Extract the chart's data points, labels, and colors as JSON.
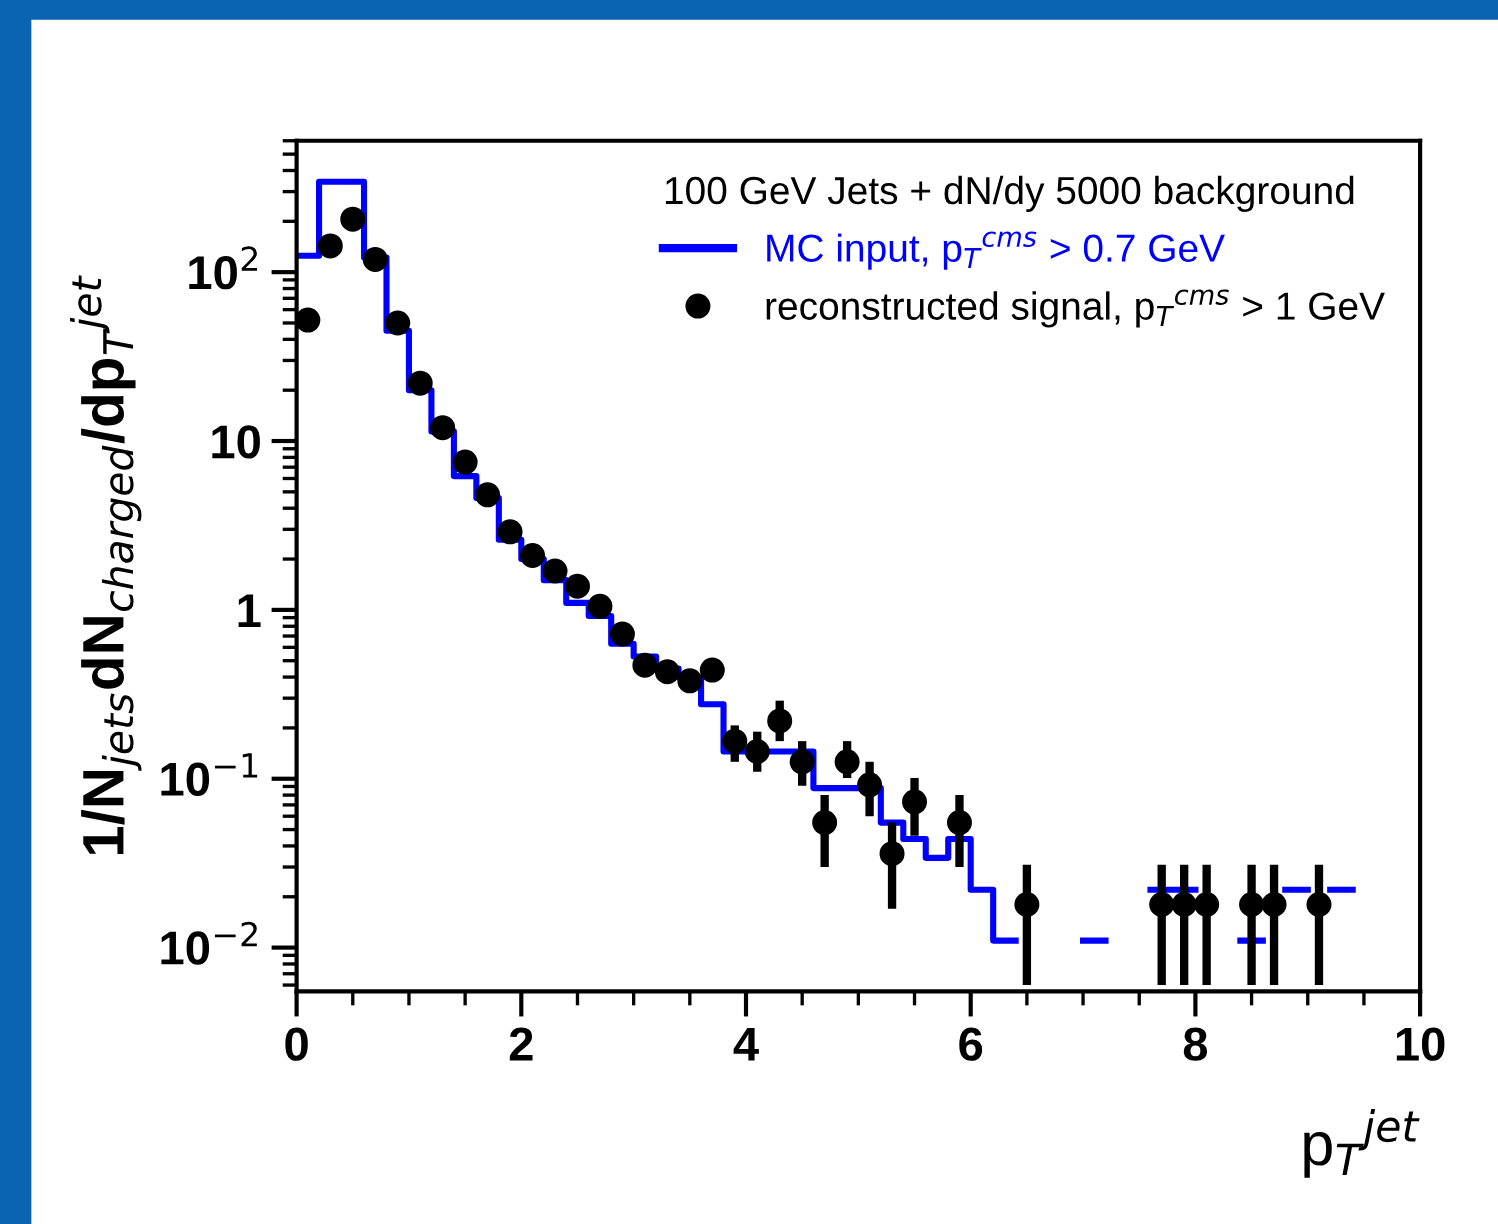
{
  "chart_data": {
    "type": "step",
    "legend_title": "100 GeV Jets + dN/dy 5000 background",
    "xlabel": "p$_{T}$$^{jet}$",
    "ylabel": "1/N$_{jets}$dN$_{charged}$/dp$_{T}$$^{jet}$",
    "series": [
      {
        "name": "MC input, p$_{T}$$^{cms}$ > 0.7 GeV",
        "color": "#0000ff",
        "x": [
          0,
          0.2,
          0.4,
          0.6,
          0.8,
          1.0,
          1.2,
          1.4,
          1.6,
          1.8,
          2.0,
          2.2,
          2.4,
          2.6,
          2.8,
          3.0,
          3.2,
          3.4,
          3.6,
          3.8,
          4.0,
          4.2,
          4.4,
          4.6,
          4.8,
          5.0,
          5.2,
          5.4,
          5.6,
          5.8,
          6.0,
          6.2,
          6.4,
          6.6,
          6.8,
          7.0,
          7.2,
          7.4,
          7.6,
          7.8,
          8.0,
          8.2,
          8.4,
          8.6,
          8.8,
          9.0,
          9.2,
          9.4
        ],
        "values": [
          125,
          343,
          343,
          122,
          45,
          20,
          11.4,
          6.2,
          4.6,
          2.6,
          2.0,
          1.5,
          1.1,
          0.92,
          0.63,
          0.53,
          0.45,
          0.4,
          0.276,
          0.145,
          0.145,
          0.145,
          0.145,
          0.088,
          0.088,
          0.088,
          0.055,
          0.044,
          0.034,
          0.044,
          0.022,
          0.011,
          null,
          null,
          null,
          0.011,
          null,
          null,
          0.022,
          0.022,
          null,
          null,
          0.011,
          null,
          0.022,
          null,
          0.022,
          0.022
        ]
      },
      {
        "name": "reconstructed signal, p$_{T}$$^{cms}$ > 1 GeV",
        "type": "scatter",
        "color": "#000000",
        "marker": "circle",
        "x": [
          0.1,
          0.3,
          0.5,
          0.7,
          0.9,
          1.1,
          1.3,
          1.5,
          1.7,
          1.9,
          2.1,
          2.3,
          2.5,
          2.7,
          2.9,
          3.1,
          3.3,
          3.5,
          3.7,
          3.9,
          4.1,
          4.3,
          4.5,
          4.7,
          4.9,
          5.1,
          5.3,
          5.5,
          5.9,
          6.5,
          7.7,
          7.9,
          8.1,
          8.5,
          8.7,
          9.1
        ],
        "values": [
          52,
          143,
          206,
          119,
          50,
          22,
          12,
          7.5,
          4.8,
          2.9,
          2.1,
          1.7,
          1.38,
          1.05,
          0.72,
          0.47,
          0.43,
          0.38,
          0.44,
          0.167,
          0.145,
          0.22,
          0.126,
          0.055,
          0.126,
          0.092,
          0.036,
          0.073,
          0.055,
          0.018,
          0.018,
          0.018,
          0.018,
          0.018,
          0.018,
          0.018
        ],
        "errors": [
          null,
          null,
          null,
          null,
          null,
          null,
          null,
          null,
          null,
          null,
          null,
          null,
          null,
          null,
          null,
          null,
          null,
          null,
          null,
          [
            0.126,
            0.207
          ],
          [
            0.11,
            0.19
          ],
          [
            0.167,
            0.29
          ],
          [
            0.091,
            0.167
          ],
          [
            0.03,
            0.08
          ],
          [
            0.101,
            0.167
          ],
          [
            0.06,
            0.126
          ],
          [
            0.017,
            0.055
          ],
          [
            0.046,
            0.101
          ],
          [
            0.03,
            0.08
          ],
          [
            0.006,
            0.031
          ],
          [
            0.006,
            0.031
          ],
          [
            0.006,
            0.031
          ],
          [
            0.006,
            0.031
          ],
          [
            0.006,
            0.031
          ],
          [
            0.006,
            0.031
          ],
          [
            0.006,
            0.031
          ]
        ]
      }
    ],
    "xlim": [
      0,
      10
    ],
    "xticks": [
      0,
      2,
      4,
      6,
      8,
      10
    ],
    "ylim": [
      0.0055,
      600
    ],
    "log": "y",
    "yticks": [
      {
        "value": 0.01,
        "label": "10$^{−2}$"
      },
      {
        "value": 0.1,
        "label": "10$^{−1}$"
      },
      1,
      10,
      {
        "value": 100,
        "label": "10$^{2}$"
      }
    ],
    "grid": false,
    "legend": "top right"
  }
}
